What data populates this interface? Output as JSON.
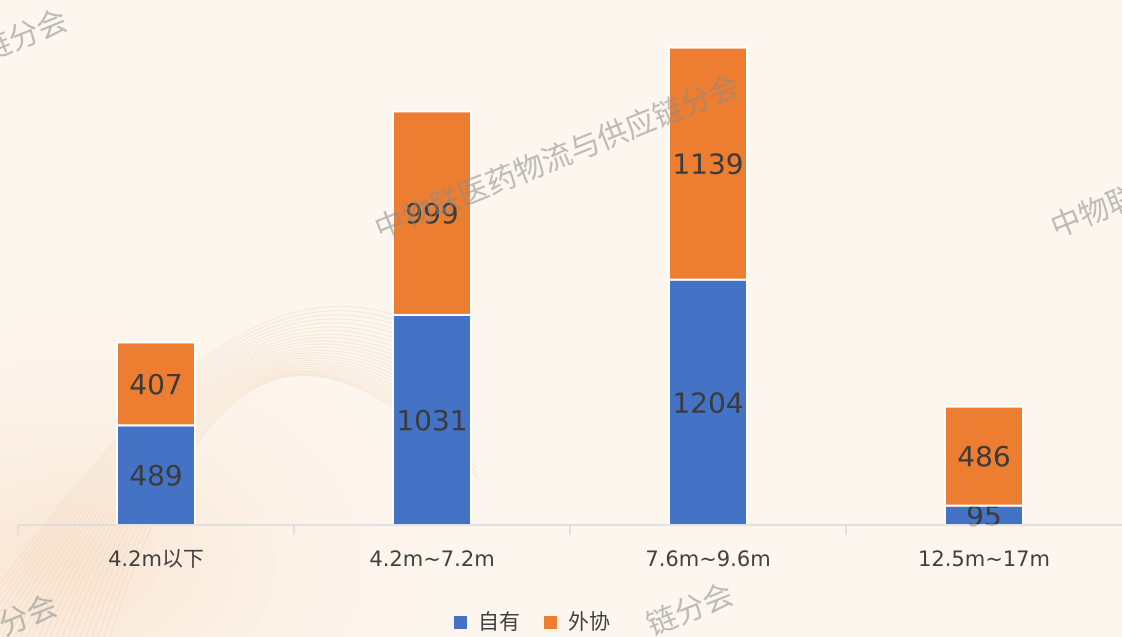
{
  "watermark": {
    "long": "中物联医药物流与供应链分会",
    "edge_top_left": "链分会",
    "edge_right": "中物联",
    "edge_bottom_left": "分会",
    "edge_bottom_mid": "链分会"
  },
  "colors": {
    "background": "#fdf6ee",
    "series_owned": "#4472c4",
    "series_outsourced": "#ed7d31",
    "axis": "#d9d9d9"
  },
  "chart_data": {
    "type": "bar",
    "stacked": true,
    "title": "",
    "xlabel": "",
    "ylabel": "",
    "grid": false,
    "legend_position": "bottom",
    "categories": [
      "4.2m以下",
      "4.2m~7.2m",
      "7.6m~9.6m",
      "12.5m~17m"
    ],
    "series": [
      {
        "name": "自有",
        "values": [
          489,
          1031,
          1204,
          95
        ]
      },
      {
        "name": "外协",
        "values": [
          407,
          999,
          1139,
          486
        ]
      }
    ],
    "ylim": [
      0,
      2400
    ]
  }
}
